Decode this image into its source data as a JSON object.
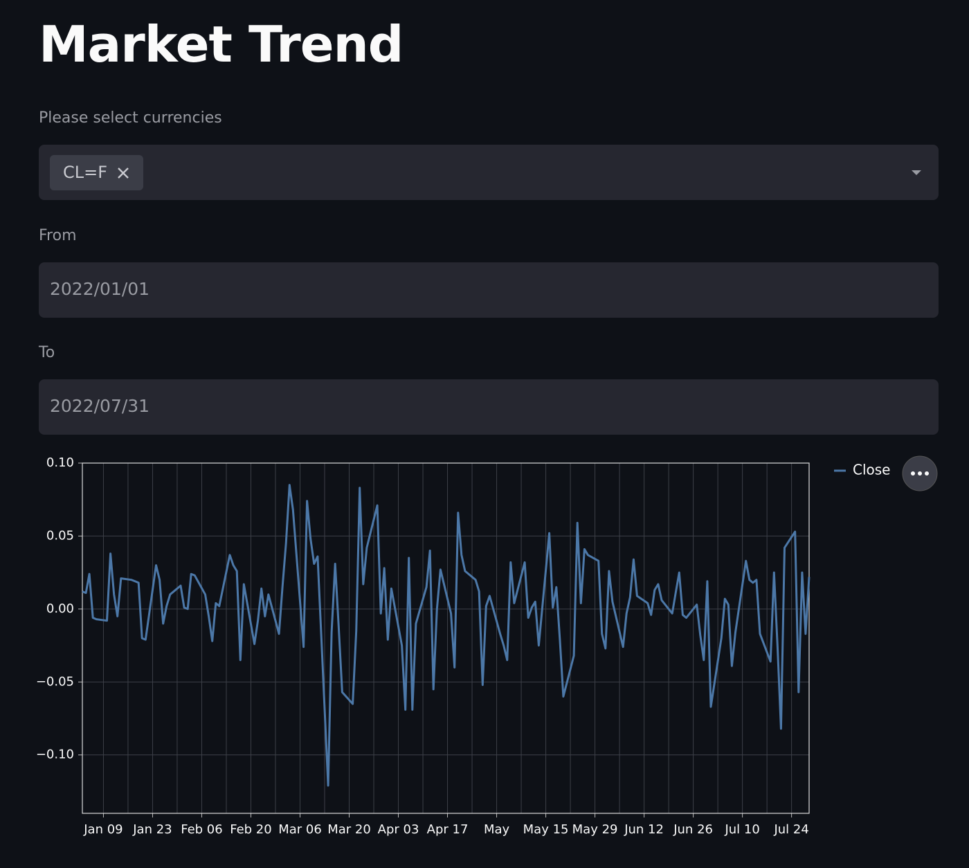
{
  "header": {
    "title": "Market Trend"
  },
  "currency": {
    "label": "Please select currencies",
    "selected": [
      "CL=F"
    ]
  },
  "from": {
    "label": "From",
    "value": "2022/01/01"
  },
  "to": {
    "label": "To",
    "value": "2022/07/31"
  },
  "chart_data": {
    "type": "line",
    "x": [
      "Jan 03",
      "Jan 04",
      "Jan 05",
      "Jan 06",
      "Jan 07",
      "Jan 10",
      "Jan 11",
      "Jan 12",
      "Jan 13",
      "Jan 14",
      "Jan 17",
      "Jan 18",
      "Jan 19",
      "Jan 20",
      "Jan 21",
      "Jan 24",
      "Jan 25",
      "Jan 26",
      "Jan 27",
      "Jan 28",
      "Jan 31",
      "Feb 01",
      "Feb 02",
      "Feb 03",
      "Feb 04",
      "Feb 07",
      "Feb 08",
      "Feb 09",
      "Feb 10",
      "Feb 11",
      "Feb 14",
      "Feb 15",
      "Feb 16",
      "Feb 17",
      "Feb 18",
      "Feb 21",
      "Feb 22",
      "Feb 23",
      "Feb 24",
      "Feb 25",
      "Feb 28",
      "Mar 01",
      "Mar 02",
      "Mar 03",
      "Mar 04",
      "Mar 07",
      "Mar 08",
      "Mar 09",
      "Mar 10",
      "Mar 11",
      "Mar 14",
      "Mar 15",
      "Mar 16",
      "Mar 17",
      "Mar 18",
      "Mar 21",
      "Mar 22",
      "Mar 23",
      "Mar 24",
      "Mar 25",
      "Mar 28",
      "Mar 29",
      "Mar 30",
      "Mar 31",
      "Apr 01",
      "Apr 04",
      "Apr 05",
      "Apr 06",
      "Apr 07",
      "Apr 08",
      "Apr 11",
      "Apr 12",
      "Apr 13",
      "Apr 14",
      "Apr 15",
      "Apr 18",
      "Apr 19",
      "Apr 20",
      "Apr 21",
      "Apr 22",
      "Apr 25",
      "Apr 26",
      "Apr 27",
      "Apr 28",
      "Apr 29",
      "May 02",
      "May 03",
      "May 04",
      "May 05",
      "May 06",
      "May 09",
      "May 10",
      "May 11",
      "May 12",
      "May 13",
      "May 16",
      "May 17",
      "May 18",
      "May 19",
      "May 20",
      "May 23",
      "May 24",
      "May 25",
      "May 26",
      "May 27",
      "May 30",
      "May 31",
      "Jun 01",
      "Jun 02",
      "Jun 03",
      "Jun 06",
      "Jun 07",
      "Jun 08",
      "Jun 09",
      "Jun 10",
      "Jun 13",
      "Jun 14",
      "Jun 15",
      "Jun 16",
      "Jun 17",
      "Jun 20",
      "Jun 21",
      "Jun 22",
      "Jun 23",
      "Jun 24",
      "Jun 27",
      "Jun 28",
      "Jun 29",
      "Jun 30",
      "Jul 01",
      "Jul 04",
      "Jul 05",
      "Jul 06",
      "Jul 07",
      "Jul 08",
      "Jul 11",
      "Jul 12",
      "Jul 13",
      "Jul 14",
      "Jul 15",
      "Jul 18",
      "Jul 19",
      "Jul 20",
      "Jul 21",
      "Jul 22",
      "Jul 25",
      "Jul 26",
      "Jul 27",
      "Jul 28",
      "Jul 29"
    ],
    "series": [
      {
        "name": "Close",
        "color": "#4c78a8",
        "values": [
          0.012,
          0.011,
          0.024,
          -0.006,
          -0.007,
          -0.008,
          0.038,
          0.01,
          -0.005,
          0.021,
          0.02,
          0.019,
          0.018,
          -0.02,
          -0.021,
          0.03,
          0.02,
          -0.01,
          0.002,
          0.01,
          0.016,
          0.001,
          0.0,
          0.024,
          0.023,
          0.01,
          -0.005,
          -0.022,
          0.004,
          0.002,
          0.037,
          0.03,
          0.026,
          -0.035,
          0.017,
          -0.024,
          -0.008,
          0.014,
          -0.005,
          0.01,
          -0.017,
          0.015,
          0.045,
          0.085,
          0.068,
          -0.026,
          0.074,
          0.048,
          0.031,
          0.036,
          -0.121,
          -0.016,
          0.031,
          -0.012,
          -0.057,
          -0.065,
          -0.015,
          0.083,
          0.017,
          0.042,
          0.071,
          -0.003,
          0.028,
          -0.021,
          0.014,
          -0.025,
          -0.069,
          0.035,
          -0.069,
          -0.01,
          0.015,
          0.04,
          -0.055,
          0.0,
          0.027,
          -0.003,
          -0.04,
          0.066,
          0.037,
          0.026,
          0.02,
          0.012,
          -0.052,
          0.002,
          0.009,
          -0.017,
          -0.025,
          -0.035,
          0.032,
          0.004,
          0.032,
          -0.006,
          0.001,
          0.005,
          -0.025,
          0.052,
          0.001,
          0.015,
          -0.021,
          -0.06,
          -0.032,
          0.059,
          0.004,
          0.041,
          0.037,
          0.033,
          -0.017,
          -0.027,
          0.026,
          0.005,
          -0.026,
          -0.003,
          0.008,
          0.034,
          0.009,
          0.004,
          -0.004,
          0.013,
          0.017,
          0.006,
          -0.003,
          0.011,
          0.025,
          -0.004,
          -0.006,
          0.003,
          -0.018,
          -0.035,
          0.019,
          -0.067,
          -0.02,
          0.007,
          0.003,
          -0.039,
          -0.016,
          0.033,
          0.02,
          0.018,
          0.02,
          -0.017,
          -0.036,
          0.025,
          -0.025,
          -0.082,
          0.042,
          0.053,
          -0.057,
          0.025,
          -0.017,
          0.022
        ]
      }
    ],
    "xlim": [
      "Jan 03",
      "Jul 29"
    ],
    "xticks": [
      {
        "value": "Jan 09",
        "label": "Jan 09"
      },
      {
        "value": "Jan 23",
        "label": "Jan 23"
      },
      {
        "value": "Feb 06",
        "label": "Feb 06"
      },
      {
        "value": "Feb 20",
        "label": "Feb 20"
      },
      {
        "value": "Mar 06",
        "label": "Mar 06"
      },
      {
        "value": "Mar 20",
        "label": "Mar 20"
      },
      {
        "value": "Apr 03",
        "label": "Apr 03"
      },
      {
        "value": "Apr 17",
        "label": "Apr 17"
      },
      {
        "value": "May 01",
        "label": "May"
      },
      {
        "value": "May 15",
        "label": "May 15"
      },
      {
        "value": "May 29",
        "label": "May 29"
      },
      {
        "value": "Jun 12",
        "label": "Jun 12"
      },
      {
        "value": "Jun 26",
        "label": "Jun 26"
      },
      {
        "value": "Jul 10",
        "label": "Jul 10"
      },
      {
        "value": "Jul 24",
        "label": "Jul 24"
      }
    ],
    "ylim": [
      -0.14,
      0.1
    ],
    "yticks": [
      {
        "value": 0.1,
        "label": "0.10"
      },
      {
        "value": 0.05,
        "label": "0.05"
      },
      {
        "value": 0,
        "label": "0.00"
      },
      {
        "value": -0.05,
        "label": "−0.05"
      },
      {
        "value": -0.1,
        "label": "−0.10"
      }
    ],
    "grid": true,
    "legend": "right"
  }
}
